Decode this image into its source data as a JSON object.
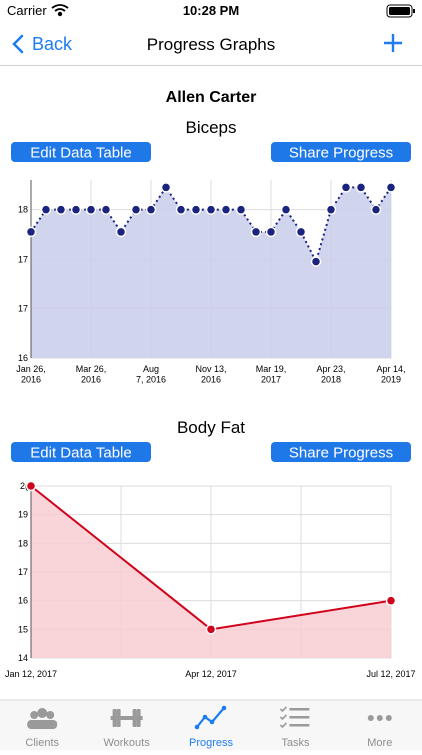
{
  "status_bar": {
    "carrier": "Carrier",
    "time": "10:28 PM"
  },
  "nav": {
    "back": "Back",
    "title": "Progress Graphs"
  },
  "client_name": "Allen Carter",
  "chart_buttons": [
    [
      "Edit Data Table",
      "Share Progress"
    ],
    [
      "Edit Data Table",
      "Share Progress"
    ]
  ],
  "chart_data": [
    {
      "type": "line",
      "title": "Biceps",
      "categories": [
        "Jan 26,\n2016",
        null,
        null,
        null,
        "Mar 26,\n2016",
        null,
        null,
        null,
        "Aug\n7, 2016",
        null,
        null,
        null,
        "Nov 13,\n2016",
        null,
        null,
        null,
        "Mar 19,\n2017",
        null,
        null,
        null,
        "Apr 23,\n2018",
        null,
        null,
        null,
        "Apr 14,\n2019"
      ],
      "values": [
        17.7,
        18,
        18,
        18,
        18,
        18,
        17.7,
        18,
        18,
        18.3,
        18,
        18,
        18,
        18,
        18,
        17.7,
        17.7,
        18,
        17.7,
        17.3,
        18,
        18.3,
        18.3,
        18,
        18.3
      ],
      "color": "#1a237e",
      "fill": "#c9cdea",
      "dashed": true,
      "ylim": [
        16,
        18.4
      ],
      "yticks": [
        18,
        {
          "value": 17.33,
          "label": "17"
        },
        {
          "value": 16.67,
          "label": "17"
        },
        16
      ],
      "grid": true
    },
    {
      "type": "line",
      "title": "Body Fat",
      "categories": [
        "Jan 12, 2017",
        "Apr 12, 2017",
        "Jul 12, 2017"
      ],
      "values": [
        20,
        15,
        16
      ],
      "color": "#d0021b",
      "fill": "#f8cdd1",
      "dashed": false,
      "ylim": [
        14,
        20
      ],
      "yticks": [
        14,
        15,
        16,
        17,
        18,
        19,
        {
          "value": 20,
          "label": "2("
        }
      ],
      "grid": true
    }
  ],
  "tab_bar": {
    "items": [
      "Clients",
      "Workouts",
      "Progress",
      "Tasks",
      "More"
    ],
    "active": 2
  }
}
